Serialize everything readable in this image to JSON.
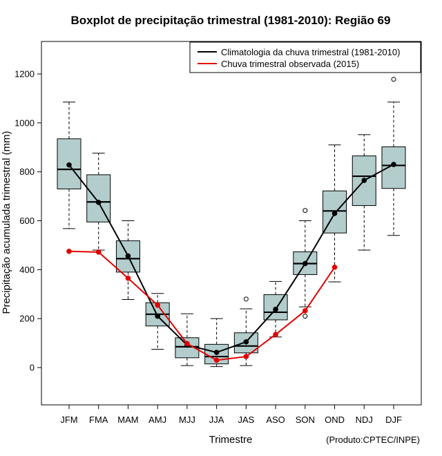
{
  "chart_data": {
    "type": "boxplot",
    "title": "Boxplot de precipitação trimestral (1981-2010): Região 69",
    "xlabel": "Trimestre",
    "ylabel": "Precipitação acumulada trimestral (mm)",
    "credit": "(Produto:CPTEC/INPE)",
    "ylim": [
      -150,
      1340
    ],
    "yticks": [
      0,
      200,
      400,
      600,
      800,
      1000,
      1200
    ],
    "categories": [
      "JFM",
      "FMA",
      "MAM",
      "AMJ",
      "MJJ",
      "JJA",
      "JAS",
      "ASO",
      "SON",
      "OND",
      "NDJ",
      "DJF"
    ],
    "boxes": [
      {
        "whisker_low": 568,
        "q1": 730,
        "median": 810,
        "q3": 935,
        "whisker_high": 1085,
        "outliers": []
      },
      {
        "whisker_low": 480,
        "q1": 595,
        "median": 677,
        "q3": 788,
        "whisker_high": 876,
        "outliers": []
      },
      {
        "whisker_low": 278,
        "q1": 390,
        "median": 445,
        "q3": 518,
        "whisker_high": 600,
        "outliers": []
      },
      {
        "whisker_low": 75,
        "q1": 170,
        "median": 218,
        "q3": 265,
        "whisker_high": 303,
        "outliers": []
      },
      {
        "whisker_low": 8,
        "q1": 40,
        "median": 85,
        "q3": 122,
        "whisker_high": 220,
        "outliers": []
      },
      {
        "whisker_low": 4,
        "q1": 15,
        "median": 45,
        "q3": 95,
        "whisker_high": 200,
        "outliers": []
      },
      {
        "whisker_low": 8,
        "q1": 60,
        "median": 88,
        "q3": 142,
        "whisker_high": 240,
        "outliers": [
          280
        ]
      },
      {
        "whisker_low": 125,
        "q1": 195,
        "median": 226,
        "q3": 298,
        "whisker_high": 352,
        "outliers": []
      },
      {
        "whisker_low": 248,
        "q1": 380,
        "median": 425,
        "q3": 473,
        "whisker_high": 600,
        "outliers": [
          642,
          210
        ]
      },
      {
        "whisker_low": 350,
        "q1": 550,
        "median": 640,
        "q3": 722,
        "whisker_high": 910,
        "outliers": []
      },
      {
        "whisker_low": 480,
        "q1": 662,
        "median": 782,
        "q3": 865,
        "whisker_high": 952,
        "outliers": []
      },
      {
        "whisker_low": 540,
        "q1": 732,
        "median": 826,
        "q3": 902,
        "whisker_high": 1085,
        "outliers": [
          1178
        ]
      }
    ],
    "series": [
      {
        "name": "Climatologia da chuva trimestral (1981-2010)",
        "color": "#000000",
        "values": [
          828,
          675,
          456,
          210,
          92,
          62,
          105,
          238,
          425,
          630,
          765,
          830
        ]
      },
      {
        "name": "Chuva trimestral observada (2015)",
        "color": "#e00000",
        "values": [
          475,
          472,
          365,
          255,
          98,
          30,
          45,
          135,
          232,
          410,
          null,
          null
        ]
      }
    ],
    "box_fill": "#b3cdcd",
    "legend_position": "top-right"
  }
}
